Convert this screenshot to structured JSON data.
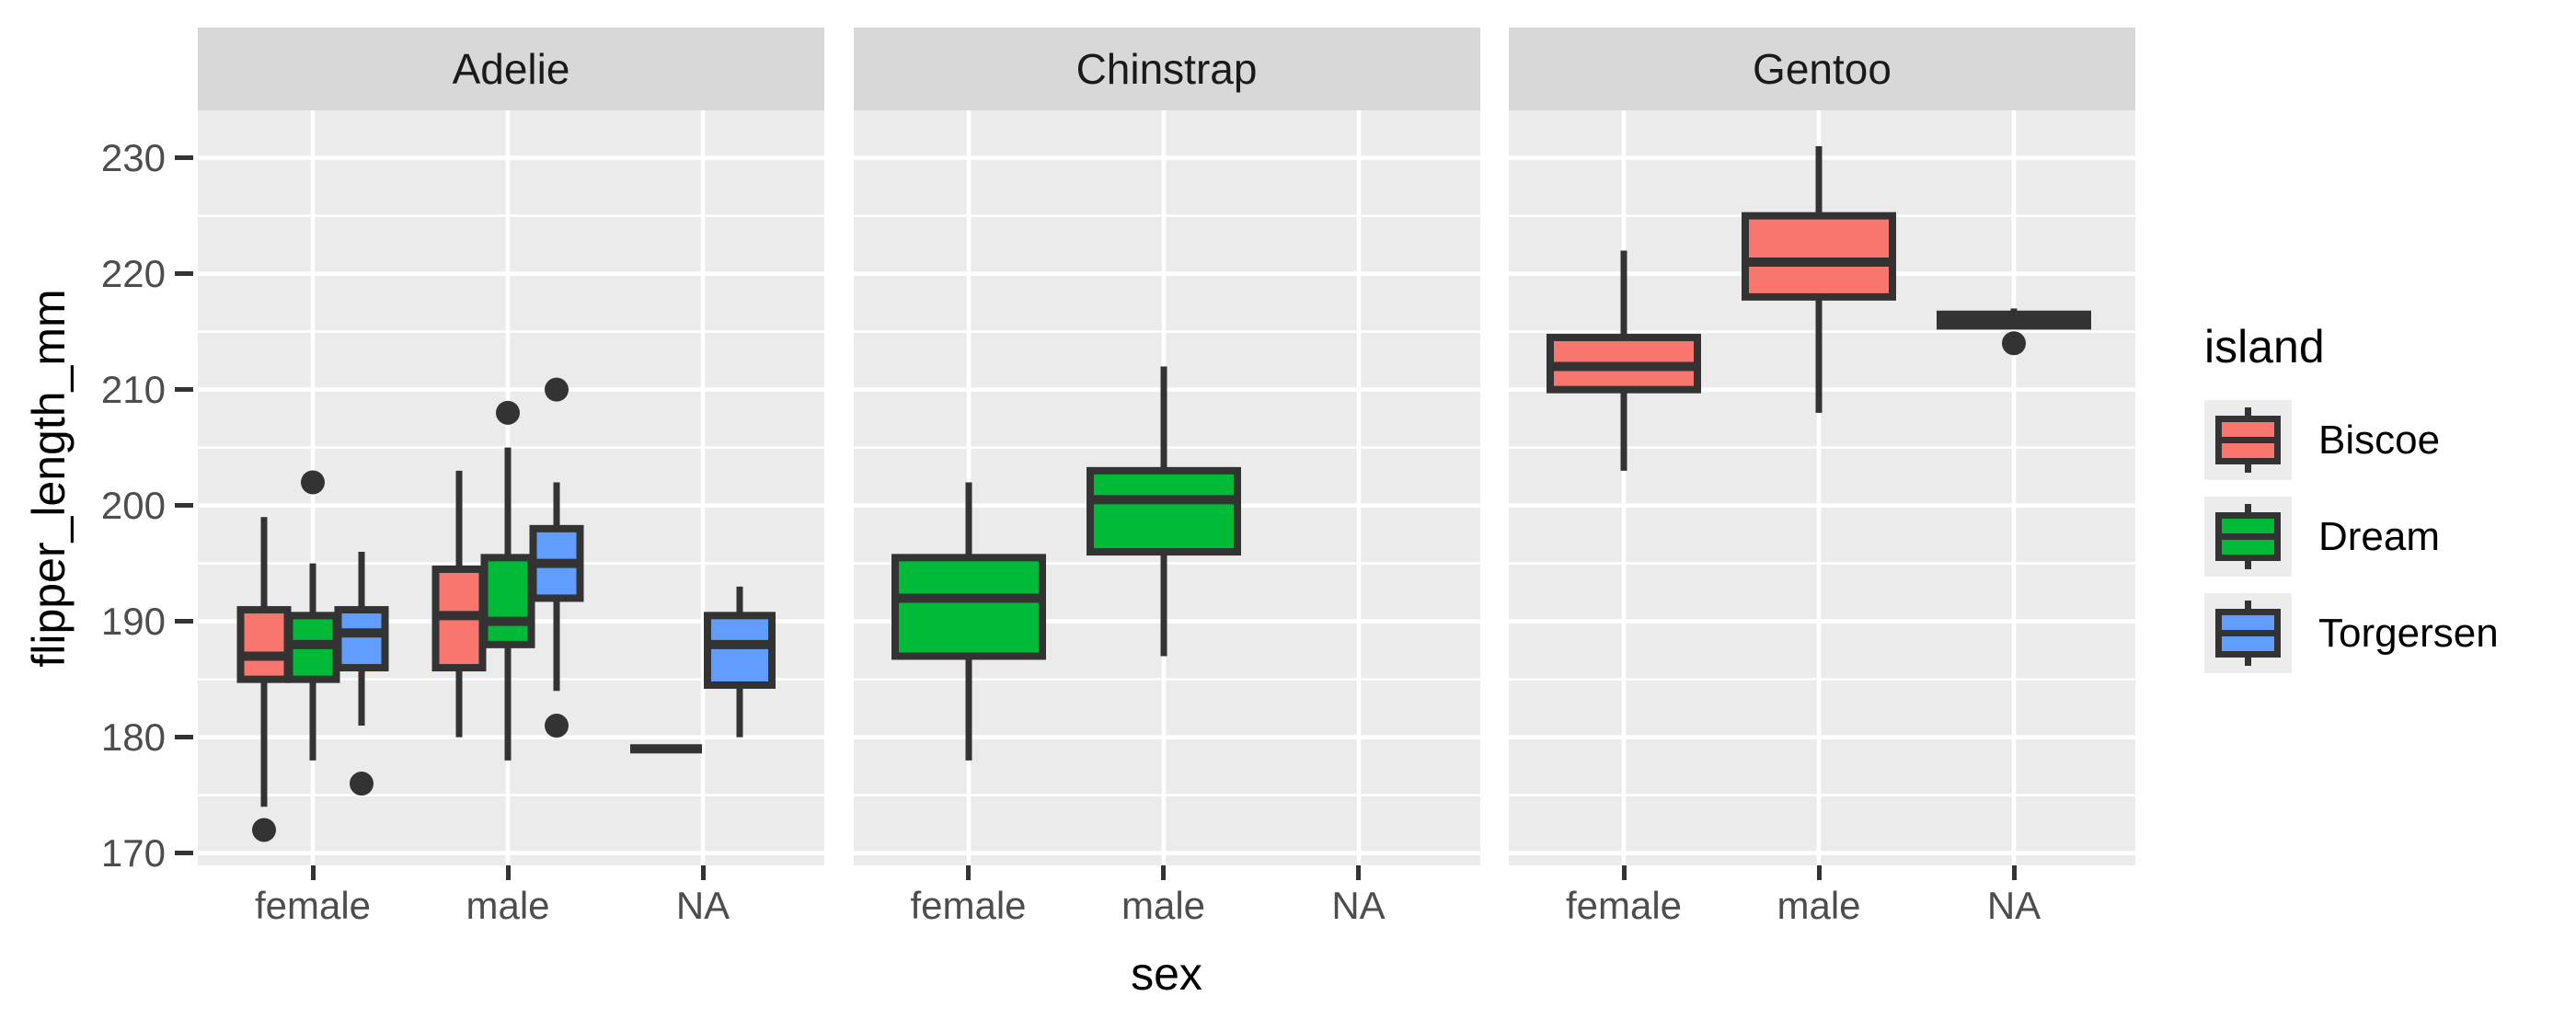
{
  "chart_data": {
    "type": "boxplot",
    "title": "",
    "facet_variable": "species",
    "x_axis": {
      "label": "sex",
      "categories": [
        "female",
        "male",
        "NA"
      ]
    },
    "y_axis": {
      "label": "flipper_length_mm",
      "ticks": [
        170,
        180,
        190,
        200,
        210,
        220,
        230
      ],
      "minor_ticks": [
        175,
        185,
        195,
        205,
        215,
        225
      ],
      "domain": [
        169.0,
        234.1
      ]
    },
    "legend": {
      "title": "island",
      "entries": [
        {
          "label": "Biscoe",
          "color": "#F8766D"
        },
        {
          "label": "Dream",
          "color": "#00BA38"
        },
        {
          "label": "Torgersen",
          "color": "#619CFF"
        }
      ]
    },
    "style": {
      "panel_bg": "#EBEBEB",
      "strip_bg": "#D8D8D8",
      "grid_color": "#FFFFFF",
      "box_stroke": "#333333",
      "axis_text_color": "#4d4d4d",
      "title_text_color": "#000000",
      "legend_key_bg": "#ECECEC"
    },
    "facets": [
      {
        "species": "Adelie",
        "boxes": [
          {
            "sex": "female",
            "island": "Biscoe",
            "lo": 174,
            "q1": 185,
            "med": 187,
            "q3": 191,
            "hi": 199,
            "outliers": [
              172
            ]
          },
          {
            "sex": "female",
            "island": "Dream",
            "lo": 178,
            "q1": 185,
            "med": 188,
            "q3": 190.5,
            "hi": 195,
            "outliers": [
              202
            ]
          },
          {
            "sex": "female",
            "island": "Torgersen",
            "lo": 181,
            "q1": 186,
            "med": 189,
            "q3": 191,
            "hi": 196,
            "outliers": [
              176
            ]
          },
          {
            "sex": "male",
            "island": "Biscoe",
            "lo": 180,
            "q1": 186,
            "med": 190.5,
            "q3": 194.5,
            "hi": 203,
            "outliers": []
          },
          {
            "sex": "male",
            "island": "Dream",
            "lo": 178,
            "q1": 188,
            "med": 190,
            "q3": 195.5,
            "hi": 205,
            "outliers": [
              208
            ]
          },
          {
            "sex": "male",
            "island": "Torgersen",
            "lo": 184,
            "q1": 192,
            "med": 195,
            "q3": 198,
            "hi": 202,
            "outliers": [
              210,
              181
            ]
          },
          {
            "sex": "NA",
            "island": "Dream",
            "lo": 179,
            "q1": 179,
            "med": 179,
            "q3": 179,
            "hi": 179,
            "outliers": []
          },
          {
            "sex": "NA",
            "island": "Torgersen",
            "lo": 180,
            "q1": 184.5,
            "med": 188,
            "q3": 190.5,
            "hi": 193,
            "outliers": []
          }
        ]
      },
      {
        "species": "Chinstrap",
        "boxes": [
          {
            "sex": "female",
            "island": "Dream",
            "lo": 178,
            "q1": 187,
            "med": 192,
            "q3": 195.5,
            "hi": 202,
            "outliers": []
          },
          {
            "sex": "male",
            "island": "Dream",
            "lo": 187,
            "q1": 196,
            "med": 200.5,
            "q3": 203,
            "hi": 212,
            "outliers": []
          }
        ]
      },
      {
        "species": "Gentoo",
        "boxes": [
          {
            "sex": "female",
            "island": "Biscoe",
            "lo": 203,
            "q1": 210,
            "med": 212,
            "q3": 214.5,
            "hi": 222,
            "outliers": []
          },
          {
            "sex": "male",
            "island": "Biscoe",
            "lo": 208,
            "q1": 218,
            "med": 221,
            "q3": 225,
            "hi": 231,
            "outliers": []
          },
          {
            "sex": "NA",
            "island": "Biscoe",
            "lo": 215.5,
            "q1": 215.5,
            "med": 216,
            "q3": 216.5,
            "hi": 217,
            "outliers": [
              214
            ]
          }
        ]
      }
    ]
  }
}
